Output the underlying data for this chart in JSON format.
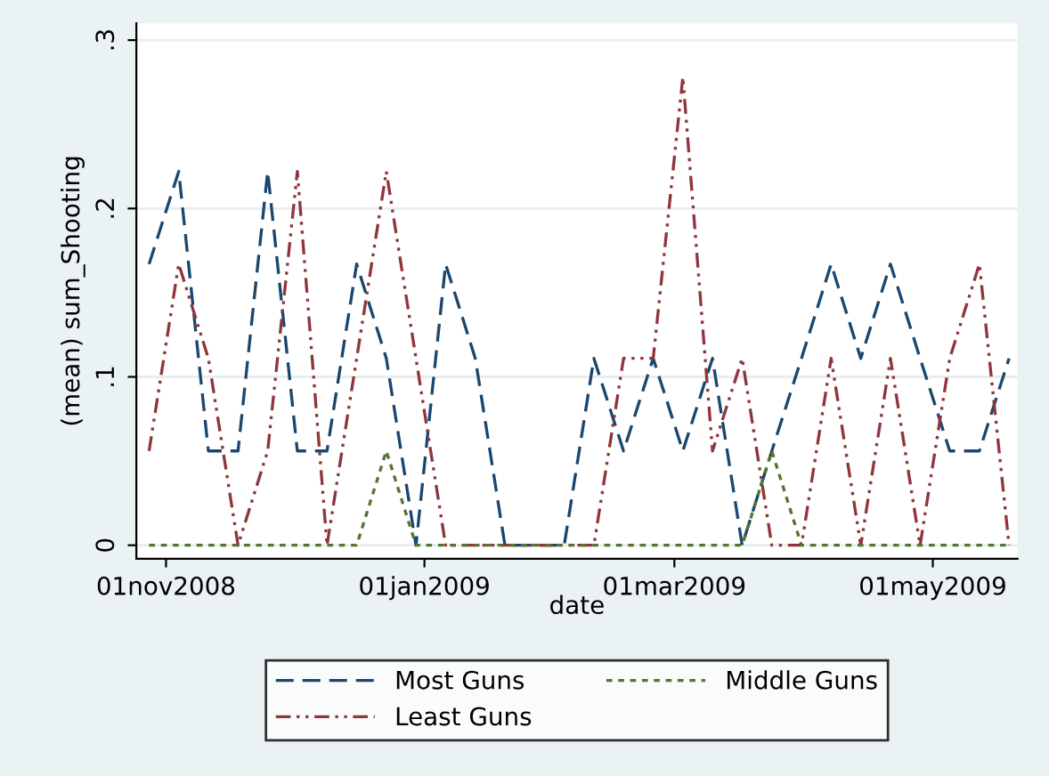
{
  "chart_data": {
    "type": "line",
    "xlabel": "date",
    "ylabel": "(mean) sum_Shooting",
    "x": [
      "2008-10-28",
      "2008-11-04",
      "2008-11-11",
      "2008-11-18",
      "2008-11-25",
      "2008-12-02",
      "2008-12-09",
      "2008-12-16",
      "2008-12-23",
      "2008-12-30",
      "2009-01-06",
      "2009-01-13",
      "2009-01-20",
      "2009-01-27",
      "2009-02-03",
      "2009-02-10",
      "2009-02-17",
      "2009-02-24",
      "2009-03-03",
      "2009-03-10",
      "2009-03-17",
      "2009-03-24",
      "2009-03-31",
      "2009-04-07",
      "2009-04-14",
      "2009-04-21",
      "2009-04-28",
      "2009-05-05",
      "2009-05-12",
      "2009-05-19"
    ],
    "series": [
      {
        "name": "Most Guns",
        "color": "#1a476f",
        "line_style": "dashed",
        "values": [
          0.167,
          0.222,
          0.056,
          0.056,
          0.222,
          0.056,
          0.056,
          0.167,
          0.111,
          0,
          0.167,
          0.111,
          0,
          0,
          0,
          0.111,
          0.056,
          0.111,
          0.056,
          0.111,
          0,
          0.056,
          0.111,
          0.167,
          0.111,
          0.167,
          0.111,
          0.056,
          0.056,
          0.111
        ]
      },
      {
        "name": "Least Guns",
        "color": "#90353b",
        "line_style": "dashdot",
        "values": [
          0.056,
          0.167,
          0.111,
          0,
          0.056,
          0.222,
          0,
          0.111,
          0.222,
          0.111,
          0,
          0,
          0,
          0,
          0,
          0,
          0.111,
          0.111,
          0.278,
          0.056,
          0.111,
          0,
          0,
          0.111,
          0,
          0.111,
          0,
          0.111,
          0.167,
          0
        ]
      },
      {
        "name": "Middle Guns",
        "color": "#55752f",
        "line_style": "dotted",
        "values": [
          0,
          0,
          0,
          0,
          0,
          0,
          0,
          0,
          0.056,
          0,
          0,
          0,
          0,
          0,
          0,
          0,
          0,
          0,
          0,
          0,
          0,
          0.056,
          0,
          0,
          0,
          0,
          0,
          0,
          0,
          0
        ]
      }
    ],
    "xlim": [
      "2008-10-25",
      "2009-05-21"
    ],
    "xticks": [
      {
        "value": "2008-11-01",
        "label": "01nov2008"
      },
      {
        "value": "2009-01-01",
        "label": "01jan2009"
      },
      {
        "value": "2009-03-01",
        "label": "01mar2009"
      },
      {
        "value": "2009-05-01",
        "label": "01may2009"
      }
    ],
    "ylim": [
      -0.008,
      0.31
    ],
    "yticks": [
      {
        "value": 0,
        "label": "0"
      },
      {
        "value": 0.1,
        "label": ".1"
      },
      {
        "value": 0.2,
        "label": ".2"
      },
      {
        "value": 0.3,
        "label": ".3"
      }
    ],
    "grid": "y",
    "legend": "bottom"
  }
}
